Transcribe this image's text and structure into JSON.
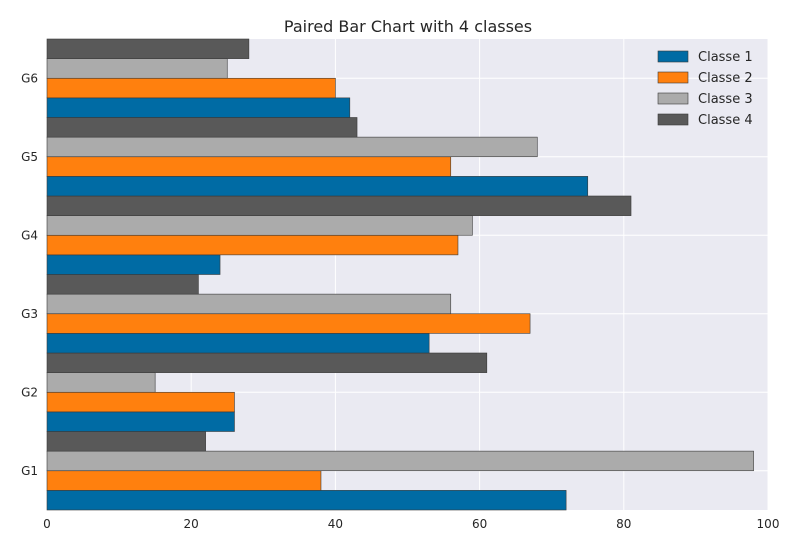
{
  "chart_data": {
    "type": "bar",
    "orientation": "horizontal",
    "title": "Paired Bar Chart with 4 classes",
    "xlabel": "",
    "ylabel": "",
    "categories": [
      "G1",
      "G2",
      "G3",
      "G4",
      "G5",
      "G6"
    ],
    "series": [
      {
        "name": "Classe 1",
        "color": "#006BA4",
        "values": [
          72,
          26,
          53,
          24,
          75,
          42
        ]
      },
      {
        "name": "Classe 2",
        "color": "#FF800E",
        "values": [
          38,
          26,
          67,
          57,
          56,
          40
        ]
      },
      {
        "name": "Classe 3",
        "color": "#ABABAB",
        "values": [
          98,
          15,
          56,
          59,
          68,
          25
        ]
      },
      {
        "name": "Classe 4",
        "color": "#595959",
        "values": [
          22,
          61,
          21,
          81,
          43,
          28
        ]
      }
    ],
    "xlim": [
      0,
      100
    ],
    "xticks": [
      0,
      20,
      40,
      60,
      80,
      100
    ],
    "grid": true,
    "legend_position": "top-right",
    "background_color": "#EAEAF2"
  }
}
